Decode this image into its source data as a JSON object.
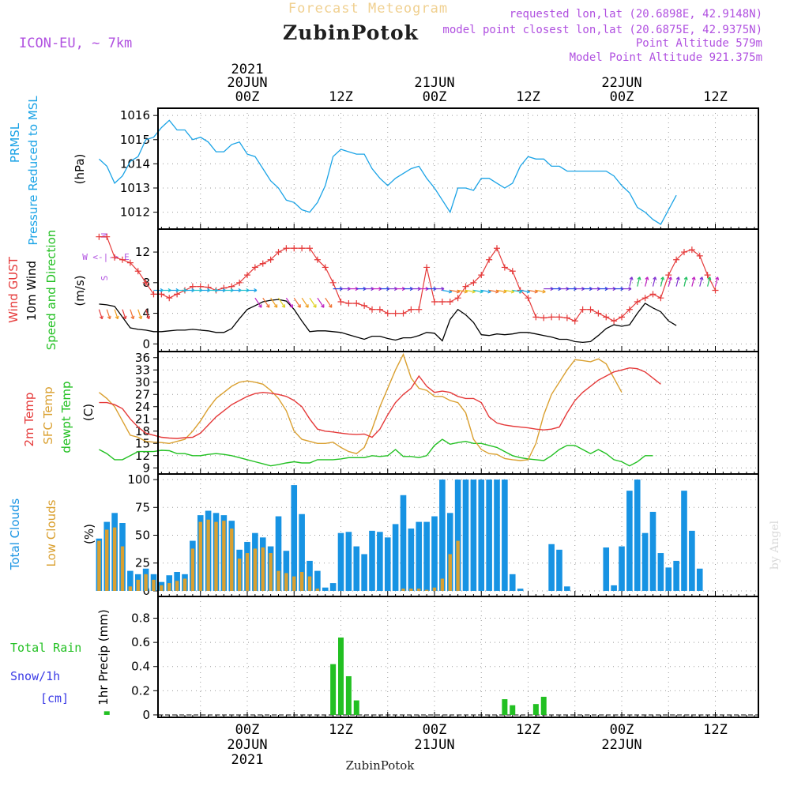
{
  "header": {
    "product_title": "Forecast Meteogram",
    "location": "ZubinPotok",
    "model": "ICON-EU, ~ 7km",
    "requested_point": "requested lon,lat (20.6898E, 42.9148N)",
    "model_point": "model point closest lon,lat (20.6875E, 42.9375N)",
    "point_altitude": "Point Altitude 579m",
    "model_point_altitude": "Model Point Altitude 921.375m",
    "footer_location": "ZubinPotok",
    "watermark": "by Angel"
  },
  "colors": {
    "pressure": "#1aa3e6",
    "wind_gust": "#e53a3a",
    "wind_10m": "#000000",
    "temp_2m": "#e53a3a",
    "temp_sfc": "#daa030",
    "dewpoint": "#22c022",
    "total_clouds": "#1793e3",
    "low_clouds": "#daa030",
    "rain": "#22c022",
    "snow": "#3a3ae6",
    "axis_info": "#b050e0"
  },
  "chart_data": [
    {
      "id": "pressure",
      "type": "line",
      "ylabel_main": "PRMSL",
      "ylabel_sub": "Pressure Reduced to MSL",
      "unit": "(hPa)",
      "ylim": [
        1011.3,
        1016.3
      ],
      "yticks": [
        1012,
        1013,
        1014,
        1015,
        1016
      ],
      "x_hours_start": 0,
      "x_hours_step": 1,
      "x_range": [
        -19,
        55
      ],
      "series": [
        {
          "values": [
            1014.2,
            1013.9,
            1013.2,
            1013.5,
            1014.1,
            1014.3,
            1015.0,
            1015.1,
            1015.5,
            1015.8,
            1015.4,
            1015.4,
            1015.0,
            1015.1,
            1014.9,
            1014.5,
            1014.5,
            1014.8,
            1014.9,
            1014.4,
            1014.3,
            1013.8,
            1013.3,
            1013.0,
            1012.5,
            1012.4,
            1012.1,
            1012.0,
            1012.4,
            1013.1,
            1014.3,
            1014.6,
            1014.5,
            1014.4,
            1014.4,
            1013.8,
            1013.4,
            1013.1,
            1013.4,
            1013.6,
            1013.8,
            1013.9,
            1013.4,
            1013.0,
            1012.5,
            1012.0,
            1013.0,
            1013.0,
            1012.9,
            1013.4,
            1013.4,
            1013.2,
            1013.0,
            1013.2,
            1013.9,
            1014.3,
            1014.2,
            1014.2,
            1013.9,
            1013.9,
            1013.7,
            1013.7,
            1013.7,
            1013.7,
            1013.7,
            1013.7,
            1013.5,
            1013.1,
            1012.8,
            1012.2,
            1012.0,
            1011.7,
            1011.5,
            1012.1,
            1012.7
          ]
        }
      ]
    },
    {
      "id": "wind",
      "type": "line",
      "ylabel_main": "Wind GUST",
      "ylabel_sub": "10m Wind",
      "ylabel_third": "Speed and Direction",
      "unit": "(m/s)",
      "compass_n": "N",
      "compass_s": "S",
      "compass_row": "W <-|-> E",
      "ylim": [
        -1,
        15
      ],
      "yticks": [
        0,
        4,
        8,
        12
      ],
      "series": [
        {
          "name": "gust",
          "values": [
            14.0,
            14.0,
            11.3,
            11.0,
            10.6,
            9.5,
            8.0,
            6.5,
            6.5,
            6.0,
            6.5,
            7.0,
            7.5,
            7.5,
            7.4,
            7.0,
            7.3,
            7.5,
            8.0,
            9.0,
            10.0,
            10.5,
            11.0,
            12.0,
            12.5,
            12.5,
            12.5,
            12.5,
            11.0,
            10.0,
            8.0,
            5.5,
            5.3,
            5.3,
            5.0,
            4.5,
            4.5,
            4.0,
            4.0,
            4.0,
            4.5,
            4.5,
            10.0,
            5.5,
            5.5,
            5.5,
            6.0,
            7.5,
            8.0,
            9.0,
            11.0,
            12.5,
            10.0,
            9.5,
            7.0,
            6.0,
            3.5,
            3.4,
            3.5,
            3.5,
            3.4,
            3.0,
            4.5,
            4.5,
            4.0,
            3.5,
            3.0,
            3.5,
            4.5,
            5.5,
            6.0,
            6.5,
            6.0,
            9.0,
            11.0,
            12.0,
            12.3,
            11.5,
            9.0,
            7.0
          ]
        },
        {
          "name": "wind10m",
          "values": [
            5.2,
            5.1,
            4.9,
            3.5,
            2.1,
            1.9,
            1.8,
            1.6,
            1.6,
            1.7,
            1.8,
            1.8,
            1.9,
            1.8,
            1.7,
            1.5,
            1.5,
            2.0,
            3.3,
            4.5,
            5.0,
            5.5,
            5.7,
            5.8,
            5.6,
            4.5,
            3.0,
            1.6,
            1.7,
            1.7,
            1.6,
            1.5,
            1.2,
            0.9,
            0.6,
            1.0,
            1.0,
            0.7,
            0.5,
            0.8,
            0.8,
            1.1,
            1.5,
            1.4,
            0.4,
            3.2,
            4.5,
            3.8,
            2.8,
            1.2,
            1.1,
            1.3,
            1.2,
            1.3,
            1.5,
            1.5,
            1.3,
            1.1,
            0.9,
            0.6,
            0.6,
            0.3,
            0.2,
            0.3,
            1.1,
            2.0,
            2.5,
            2.3,
            2.5,
            4.0,
            5.3,
            4.7,
            4.2,
            3.0,
            2.4
          ]
        }
      ],
      "direction_arrows": "colored wind barbs along 10m wind trace"
    },
    {
      "id": "temperature",
      "type": "line",
      "ylabel_main": "2m Temp",
      "ylabel_sub": "SFC Temp",
      "ylabel_third": "dewpt Temp",
      "unit": "(C)",
      "ylim": [
        7.5,
        37.5
      ],
      "yticks": [
        9,
        12,
        15,
        18,
        21,
        24,
        27,
        30,
        33,
        36
      ],
      "series": [
        {
          "name": "2m",
          "values": [
            25.0,
            25.0,
            24.5,
            23.5,
            21.0,
            19.0,
            17.5,
            17.0,
            16.5,
            16.3,
            16.2,
            16.4,
            16.5,
            17.5,
            19.5,
            21.5,
            23.0,
            24.5,
            25.5,
            26.5,
            27.2,
            27.5,
            27.3,
            27.0,
            26.5,
            25.5,
            24.0,
            21.0,
            18.5,
            18.0,
            17.8,
            17.5,
            17.3,
            17.2,
            17.3,
            16.5,
            18.5,
            22.0,
            25.0,
            27.0,
            28.5,
            31.5,
            29.0,
            27.5,
            27.8,
            27.5,
            26.5,
            26.0,
            26.0,
            25.0,
            21.5,
            20.0,
            19.5,
            19.2,
            19.0,
            18.8,
            18.5,
            18.3,
            18.5,
            19.0,
            22.5,
            25.5,
            27.5,
            29.0,
            30.5,
            31.5,
            32.5,
            33.0,
            33.5,
            33.3,
            32.5,
            31.0,
            29.5
          ]
        },
        {
          "name": "sfc",
          "values": [
            27.5,
            26.0,
            24.0,
            20.5,
            17.0,
            16.5,
            15.5,
            15.3,
            15.2,
            15.0,
            15.5,
            16.0,
            18.0,
            20.5,
            23.5,
            26.0,
            27.5,
            29.0,
            30.0,
            30.3,
            30.0,
            29.5,
            28.0,
            26.0,
            23.0,
            18.0,
            16.0,
            15.5,
            15.0,
            15.0,
            15.3,
            14.0,
            13.0,
            12.5,
            14.0,
            18.5,
            24.0,
            28.5,
            33.0,
            36.8,
            31.0,
            28.5,
            28.0,
            26.5,
            26.5,
            25.5,
            25.0,
            22.5,
            16.0,
            13.5,
            12.5,
            12.3,
            11.3,
            11.0,
            10.8,
            11.0,
            15.0,
            22.0,
            27.0,
            30.0,
            33.0,
            35.5,
            35.3,
            35.0,
            35.7,
            34.5,
            31.0,
            27.5
          ]
        },
        {
          "name": "dewpt",
          "values": [
            13.5,
            12.5,
            11.0,
            11.0,
            12.0,
            13.0,
            13.0,
            13.0,
            13.3,
            13.2,
            12.5,
            12.5,
            12.0,
            12.0,
            12.3,
            12.5,
            12.3,
            12.0,
            11.5,
            11.0,
            10.5,
            10.0,
            9.5,
            9.8,
            10.2,
            10.5,
            10.2,
            10.2,
            11.0,
            11.0,
            11.0,
            11.2,
            11.5,
            11.5,
            11.5,
            12.0,
            11.8,
            12.0,
            13.5,
            11.8,
            11.8,
            11.5,
            12.0,
            14.5,
            16.0,
            14.8,
            15.2,
            15.5,
            15.0,
            15.0,
            14.5,
            14.0,
            13.0,
            12.0,
            11.5,
            11.2,
            11.0,
            10.8,
            12.0,
            13.5,
            14.5,
            14.5,
            13.5,
            12.5,
            13.5,
            12.5,
            11.0,
            10.5,
            9.5,
            10.5,
            12.0,
            12.0
          ]
        }
      ]
    },
    {
      "id": "clouds",
      "type": "bar",
      "ylabel_main": "Total Clouds",
      "ylabel_sub": "Low Clouds",
      "unit": "(%)",
      "ylim": [
        -5,
        105
      ],
      "yticks": [
        0,
        25,
        50,
        75,
        100
      ],
      "series": [
        {
          "name": "total",
          "values": [
            47,
            62,
            70,
            61,
            18,
            15,
            20,
            15,
            8,
            14,
            17,
            15,
            45,
            68,
            72,
            70,
            68,
            63,
            37,
            44,
            52,
            48,
            40,
            67,
            36,
            95,
            69,
            27,
            18,
            3,
            7,
            52,
            53,
            40,
            33,
            54,
            53,
            48,
            60,
            86,
            56,
            62,
            62,
            67,
            100,
            70,
            100,
            100,
            100,
            100,
            100,
            100,
            100,
            15,
            2,
            0,
            0,
            0,
            42,
            37,
            4,
            0,
            0,
            0,
            0,
            39,
            5,
            40,
            90,
            100,
            52,
            71,
            34,
            21,
            27,
            90,
            54,
            20
          ]
        },
        {
          "name": "low",
          "values": [
            45,
            55,
            57,
            40,
            4,
            10,
            15,
            10,
            5,
            7,
            9,
            11,
            38,
            62,
            64,
            62,
            63,
            56,
            29,
            34,
            38,
            39,
            34,
            18,
            16,
            13,
            17,
            13,
            2,
            0,
            0,
            0,
            0,
            0,
            0,
            0,
            0,
            0,
            0,
            2,
            2,
            2,
            1,
            3,
            11,
            33,
            45,
            0,
            0,
            0,
            0,
            0,
            0,
            0,
            0,
            0,
            0,
            0,
            0,
            0,
            0,
            0,
            0,
            0,
            0,
            0,
            0,
            0,
            0,
            0,
            0,
            0,
            0,
            0,
            0,
            0,
            0,
            0
          ]
        }
      ]
    },
    {
      "id": "precip",
      "type": "bar",
      "ylabel_main": "Total  Rain",
      "ylabel_sub": "Snow/1h",
      "ylabel_third": "[cm]",
      "ylabel_axis": "1hr Precip (mm)",
      "ylim": [
        -0.02,
        0.98
      ],
      "yticks": [
        0,
        0.2,
        0.4,
        0.6,
        0.8
      ],
      "ytick_labels": [
        "0",
        "0.2",
        "0.4",
        "0.6",
        "0.8"
      ],
      "series": [
        {
          "name": "rain",
          "points": [
            [
              -18,
              0.03
            ],
            [
              10,
              0.0
            ],
            [
              11,
              0.42
            ],
            [
              12,
              0.64
            ],
            [
              13,
              0.32
            ],
            [
              14,
              0.12
            ],
            [
              33,
              0.13
            ],
            [
              34,
              0.08
            ],
            [
              37,
              0.09
            ],
            [
              38,
              0.15
            ]
          ]
        }
      ]
    }
  ],
  "time_axis": {
    "top": {
      "year": "2021",
      "labels": [
        {
          "hour": 0,
          "l1": "20JUN",
          "l2": "00Z"
        },
        {
          "hour": 12,
          "l1": "",
          "l2": "12Z"
        },
        {
          "hour": 24,
          "l1": "21JUN",
          "l2": "00Z"
        },
        {
          "hour": 36,
          "l1": "",
          "l2": "12Z"
        },
        {
          "hour": 48,
          "l1": "22JUN",
          "l2": "00Z"
        },
        {
          "hour": 60,
          "l1": "",
          "l2": "12Z"
        }
      ]
    },
    "bottom": {
      "year": "2021",
      "labels": [
        {
          "hour": 0,
          "l1": "00Z",
          "l2": "20JUN"
        },
        {
          "hour": 12,
          "l1": "12Z",
          "l2": ""
        },
        {
          "hour": 24,
          "l1": "00Z",
          "l2": "21JUN"
        },
        {
          "hour": 36,
          "l1": "12Z",
          "l2": ""
        },
        {
          "hour": 48,
          "l1": "00Z",
          "l2": "22JUN"
        },
        {
          "hour": 60,
          "l1": "12Z",
          "l2": ""
        }
      ]
    }
  }
}
